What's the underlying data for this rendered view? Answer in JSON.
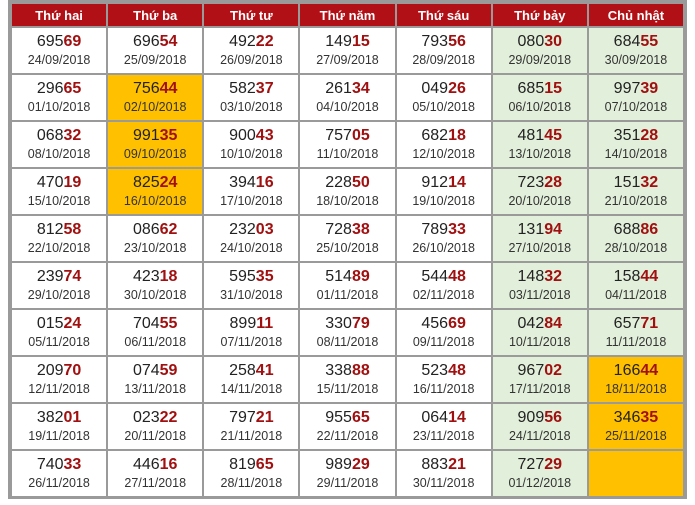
{
  "headers": [
    "Thứ hai",
    "Thứ ba",
    "Thứ tư",
    "Thứ năm",
    "Thứ sáu",
    "Thứ bảy",
    "Chủ nhật"
  ],
  "colors": {
    "header_bg": "#b11116",
    "weekend_bg": "#e2efda",
    "highlight_bg": "#ffc000",
    "tail_digits": "#a01010"
  },
  "rows": [
    [
      {
        "head": "695",
        "tail": "69",
        "date": "24/09/2018"
      },
      {
        "head": "696",
        "tail": "54",
        "date": "25/09/2018"
      },
      {
        "head": "492",
        "tail": "22",
        "date": "26/09/2018"
      },
      {
        "head": "149",
        "tail": "15",
        "date": "27/09/2018"
      },
      {
        "head": "793",
        "tail": "56",
        "date": "28/09/2018"
      },
      {
        "head": "080",
        "tail": "30",
        "date": "29/09/2018"
      },
      {
        "head": "684",
        "tail": "55",
        "date": "30/09/2018"
      }
    ],
    [
      {
        "head": "296",
        "tail": "65",
        "date": "01/10/2018"
      },
      {
        "head": "756",
        "tail": "44",
        "date": "02/10/2018",
        "highlight": true
      },
      {
        "head": "582",
        "tail": "37",
        "date": "03/10/2018"
      },
      {
        "head": "261",
        "tail": "34",
        "date": "04/10/2018"
      },
      {
        "head": "049",
        "tail": "26",
        "date": "05/10/2018"
      },
      {
        "head": "685",
        "tail": "15",
        "date": "06/10/2018"
      },
      {
        "head": "997",
        "tail": "39",
        "date": "07/10/2018"
      }
    ],
    [
      {
        "head": "068",
        "tail": "32",
        "date": "08/10/2018"
      },
      {
        "head": "991",
        "tail": "35",
        "date": "09/10/2018",
        "highlight": true
      },
      {
        "head": "900",
        "tail": "43",
        "date": "10/10/2018"
      },
      {
        "head": "757",
        "tail": "05",
        "date": "11/10/2018"
      },
      {
        "head": "682",
        "tail": "18",
        "date": "12/10/2018"
      },
      {
        "head": "481",
        "tail": "45",
        "date": "13/10/2018"
      },
      {
        "head": "351",
        "tail": "28",
        "date": "14/10/2018"
      }
    ],
    [
      {
        "head": "470",
        "tail": "19",
        "date": "15/10/2018"
      },
      {
        "head": "825",
        "tail": "24",
        "date": "16/10/2018",
        "highlight": true
      },
      {
        "head": "394",
        "tail": "16",
        "date": "17/10/2018"
      },
      {
        "head": "228",
        "tail": "50",
        "date": "18/10/2018"
      },
      {
        "head": "912",
        "tail": "14",
        "date": "19/10/2018"
      },
      {
        "head": "723",
        "tail": "28",
        "date": "20/10/2018"
      },
      {
        "head": "151",
        "tail": "32",
        "date": "21/10/2018"
      }
    ],
    [
      {
        "head": "812",
        "tail": "58",
        "date": "22/10/2018"
      },
      {
        "head": "086",
        "tail": "62",
        "date": "23/10/2018"
      },
      {
        "head": "232",
        "tail": "03",
        "date": "24/10/2018"
      },
      {
        "head": "728",
        "tail": "38",
        "date": "25/10/2018"
      },
      {
        "head": "789",
        "tail": "33",
        "date": "26/10/2018"
      },
      {
        "head": "131",
        "tail": "94",
        "date": "27/10/2018"
      },
      {
        "head": "688",
        "tail": "86",
        "date": "28/10/2018"
      }
    ],
    [
      {
        "head": "239",
        "tail": "74",
        "date": "29/10/2018"
      },
      {
        "head": "423",
        "tail": "18",
        "date": "30/10/2018"
      },
      {
        "head": "595",
        "tail": "35",
        "date": "31/10/2018"
      },
      {
        "head": "514",
        "tail": "89",
        "date": "01/11/2018"
      },
      {
        "head": "544",
        "tail": "48",
        "date": "02/11/2018"
      },
      {
        "head": "148",
        "tail": "32",
        "date": "03/11/2018"
      },
      {
        "head": "158",
        "tail": "44",
        "date": "04/11/2018"
      }
    ],
    [
      {
        "head": "015",
        "tail": "24",
        "date": "05/11/2018"
      },
      {
        "head": "704",
        "tail": "55",
        "date": "06/11/2018"
      },
      {
        "head": "899",
        "tail": "11",
        "date": "07/11/2018"
      },
      {
        "head": "330",
        "tail": "79",
        "date": "08/11/2018"
      },
      {
        "head": "456",
        "tail": "69",
        "date": "09/11/2018"
      },
      {
        "head": "042",
        "tail": "84",
        "date": "10/11/2018"
      },
      {
        "head": "657",
        "tail": "71",
        "date": "11/11/2018"
      }
    ],
    [
      {
        "head": "209",
        "tail": "70",
        "date": "12/11/2018"
      },
      {
        "head": "074",
        "tail": "59",
        "date": "13/11/2018"
      },
      {
        "head": "258",
        "tail": "41",
        "date": "14/11/2018"
      },
      {
        "head": "338",
        "tail": "88",
        "date": "15/11/2018"
      },
      {
        "head": "523",
        "tail": "48",
        "date": "16/11/2018"
      },
      {
        "head": "967",
        "tail": "02",
        "date": "17/11/2018"
      },
      {
        "head": "166",
        "tail": "44",
        "date": "18/11/2018",
        "highlight": true
      }
    ],
    [
      {
        "head": "382",
        "tail": "01",
        "date": "19/11/2018"
      },
      {
        "head": "023",
        "tail": "22",
        "date": "20/11/2018"
      },
      {
        "head": "797",
        "tail": "21",
        "date": "21/11/2018"
      },
      {
        "head": "955",
        "tail": "65",
        "date": "22/11/2018"
      },
      {
        "head": "064",
        "tail": "14",
        "date": "23/11/2018"
      },
      {
        "head": "909",
        "tail": "56",
        "date": "24/11/2018"
      },
      {
        "head": "346",
        "tail": "35",
        "date": "25/11/2018",
        "highlight": true
      }
    ],
    [
      {
        "head": "740",
        "tail": "33",
        "date": "26/11/2018"
      },
      {
        "head": "446",
        "tail": "16",
        "date": "27/11/2018"
      },
      {
        "head": "819",
        "tail": "65",
        "date": "28/11/2018"
      },
      {
        "head": "989",
        "tail": "29",
        "date": "29/11/2018"
      },
      {
        "head": "883",
        "tail": "21",
        "date": "30/11/2018"
      },
      {
        "head": "727",
        "tail": "29",
        "date": "01/12/2018"
      },
      {
        "head": "",
        "tail": "",
        "date": "",
        "highlight": true,
        "empty": true
      }
    ]
  ]
}
